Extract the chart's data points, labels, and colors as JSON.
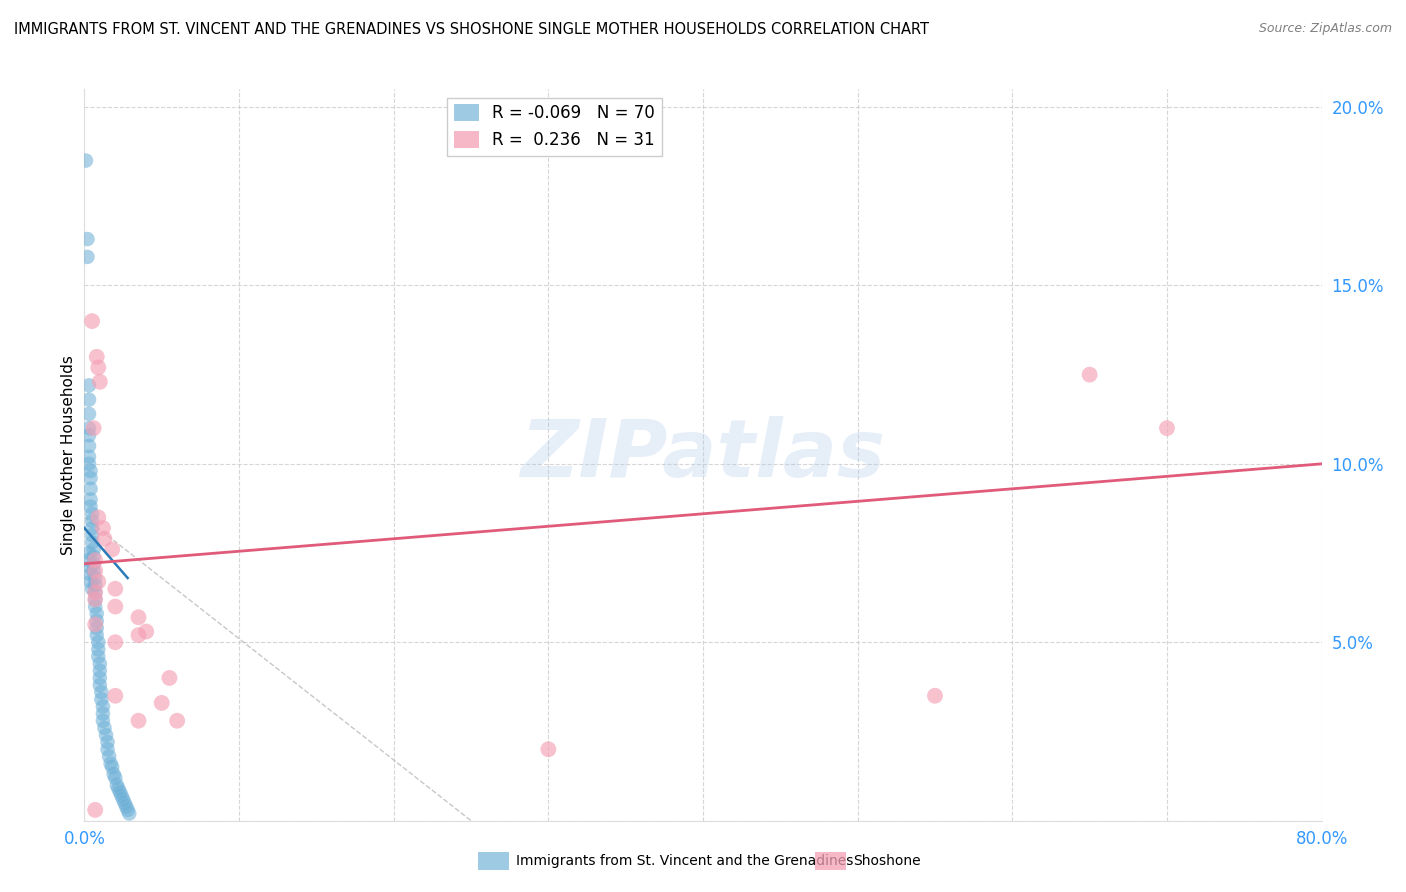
{
  "title": "IMMIGRANTS FROM ST. VINCENT AND THE GRENADINES VS SHOSHONE SINGLE MOTHER HOUSEHOLDS CORRELATION CHART",
  "source": "Source: ZipAtlas.com",
  "ylabel": "Single Mother Households",
  "x_min": 0.0,
  "x_max": 0.8,
  "y_min": 0.0,
  "y_max": 0.205,
  "x_ticks": [
    0.0,
    0.1,
    0.2,
    0.3,
    0.4,
    0.5,
    0.6,
    0.7,
    0.8
  ],
  "x_tick_labels": [
    "0.0%",
    "",
    "",
    "",
    "",
    "",
    "",
    "",
    "80.0%"
  ],
  "y_ticks": [
    0.0,
    0.05,
    0.1,
    0.15,
    0.2
  ],
  "y_tick_labels": [
    "",
    "5.0%",
    "10.0%",
    "15.0%",
    "20.0%"
  ],
  "blue_color": "#6baed6",
  "pink_color": "#f4a0b5",
  "blue_line_color": "#2b7bba",
  "pink_line_color": "#e05a7a",
  "watermark": "ZIPatlas",
  "blue_points": [
    [
      0.001,
      0.185
    ],
    [
      0.002,
      0.163
    ],
    [
      0.002,
      0.158
    ],
    [
      0.003,
      0.122
    ],
    [
      0.003,
      0.118
    ],
    [
      0.003,
      0.114
    ],
    [
      0.003,
      0.11
    ],
    [
      0.003,
      0.108
    ],
    [
      0.003,
      0.105
    ],
    [
      0.003,
      0.102
    ],
    [
      0.003,
      0.1
    ],
    [
      0.004,
      0.098
    ],
    [
      0.004,
      0.096
    ],
    [
      0.004,
      0.093
    ],
    [
      0.004,
      0.09
    ],
    [
      0.004,
      0.088
    ],
    [
      0.005,
      0.086
    ],
    [
      0.005,
      0.084
    ],
    [
      0.005,
      0.082
    ],
    [
      0.005,
      0.08
    ],
    [
      0.005,
      0.078
    ],
    [
      0.006,
      0.076
    ],
    [
      0.006,
      0.074
    ],
    [
      0.006,
      0.072
    ],
    [
      0.006,
      0.07
    ],
    [
      0.007,
      0.068
    ],
    [
      0.007,
      0.066
    ],
    [
      0.007,
      0.064
    ],
    [
      0.007,
      0.062
    ],
    [
      0.007,
      0.06
    ],
    [
      0.008,
      0.058
    ],
    [
      0.008,
      0.056
    ],
    [
      0.008,
      0.054
    ],
    [
      0.008,
      0.052
    ],
    [
      0.009,
      0.05
    ],
    [
      0.009,
      0.048
    ],
    [
      0.009,
      0.046
    ],
    [
      0.01,
      0.044
    ],
    [
      0.01,
      0.042
    ],
    [
      0.01,
      0.04
    ],
    [
      0.01,
      0.038
    ],
    [
      0.011,
      0.036
    ],
    [
      0.011,
      0.034
    ],
    [
      0.012,
      0.032
    ],
    [
      0.012,
      0.03
    ],
    [
      0.012,
      0.028
    ],
    [
      0.013,
      0.026
    ],
    [
      0.014,
      0.024
    ],
    [
      0.015,
      0.022
    ],
    [
      0.015,
      0.02
    ],
    [
      0.016,
      0.018
    ],
    [
      0.017,
      0.016
    ],
    [
      0.018,
      0.015
    ],
    [
      0.019,
      0.013
    ],
    [
      0.02,
      0.012
    ],
    [
      0.021,
      0.01
    ],
    [
      0.022,
      0.009
    ],
    [
      0.023,
      0.008
    ],
    [
      0.024,
      0.007
    ],
    [
      0.025,
      0.006
    ],
    [
      0.026,
      0.005
    ],
    [
      0.027,
      0.004
    ],
    [
      0.028,
      0.003
    ],
    [
      0.029,
      0.002
    ],
    [
      0.003,
      0.075
    ],
    [
      0.003,
      0.073
    ],
    [
      0.004,
      0.071
    ],
    [
      0.004,
      0.069
    ],
    [
      0.004,
      0.067
    ],
    [
      0.005,
      0.065
    ]
  ],
  "pink_points": [
    [
      0.005,
      0.14
    ],
    [
      0.008,
      0.13
    ],
    [
      0.009,
      0.127
    ],
    [
      0.01,
      0.123
    ],
    [
      0.006,
      0.11
    ],
    [
      0.009,
      0.085
    ],
    [
      0.012,
      0.082
    ],
    [
      0.013,
      0.079
    ],
    [
      0.018,
      0.076
    ],
    [
      0.007,
      0.073
    ],
    [
      0.007,
      0.07
    ],
    [
      0.009,
      0.067
    ],
    [
      0.02,
      0.065
    ],
    [
      0.007,
      0.064
    ],
    [
      0.007,
      0.062
    ],
    [
      0.02,
      0.06
    ],
    [
      0.035,
      0.057
    ],
    [
      0.007,
      0.055
    ],
    [
      0.04,
      0.053
    ],
    [
      0.035,
      0.052
    ],
    [
      0.02,
      0.05
    ],
    [
      0.055,
      0.04
    ],
    [
      0.02,
      0.035
    ],
    [
      0.05,
      0.033
    ],
    [
      0.3,
      0.02
    ],
    [
      0.55,
      0.035
    ],
    [
      0.65,
      0.125
    ],
    [
      0.7,
      0.11
    ],
    [
      0.007,
      0.003
    ],
    [
      0.035,
      0.028
    ],
    [
      0.06,
      0.028
    ]
  ],
  "blue_line_x": [
    0.0,
    0.028
  ],
  "blue_line_y": [
    0.082,
    0.068
  ],
  "pink_line_x": [
    0.0,
    0.8
  ],
  "pink_line_y": [
    0.072,
    0.1
  ],
  "dash_line_x": [
    0.0,
    0.25
  ],
  "dash_line_y": [
    0.085,
    0.0
  ]
}
